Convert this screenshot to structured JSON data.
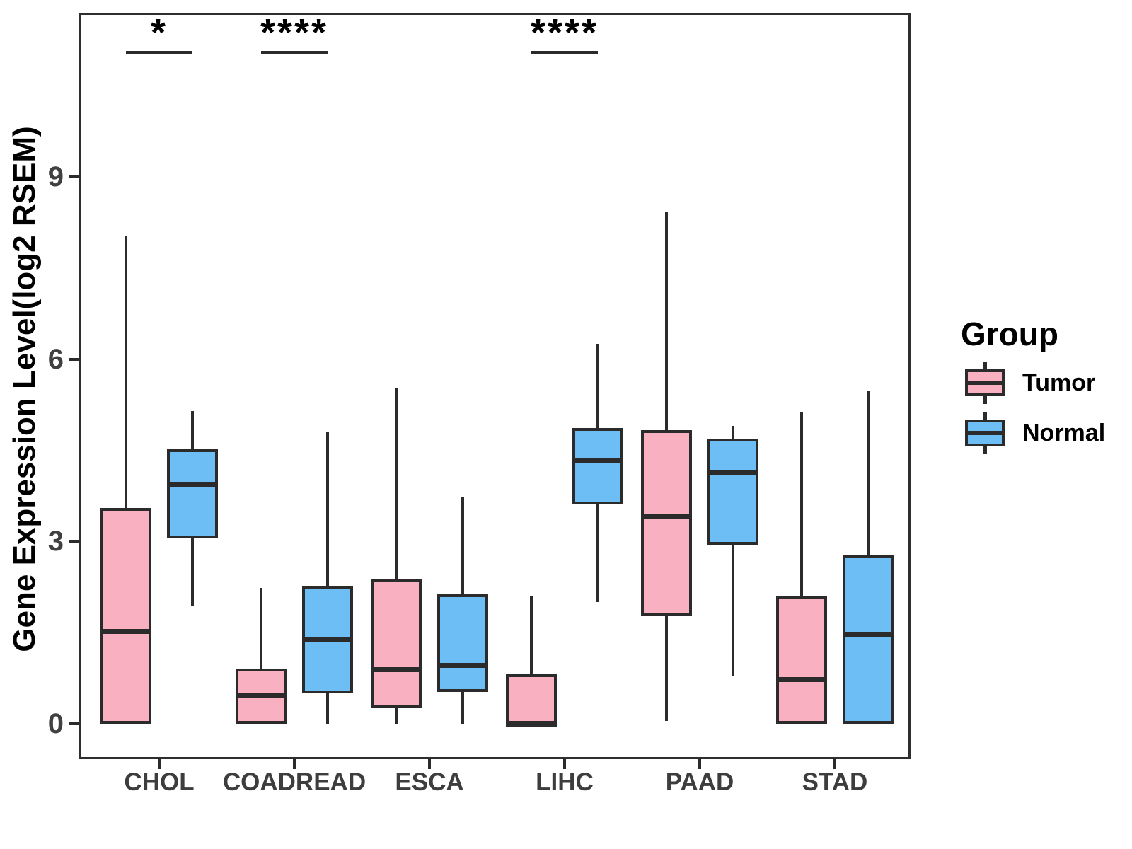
{
  "legend": {
    "title": "Group"
  },
  "chart_data": {
    "type": "boxplot",
    "title": "",
    "ylabel": "Gene Expression Level(log2 RSEM)",
    "xlabel": "",
    "yticks": [
      0,
      3,
      6,
      9
    ],
    "ylim": [
      -0.56,
      11.67
    ],
    "grid": false,
    "legend_position": "right",
    "categories": [
      "CHOL",
      "COADREAD",
      "ESCA",
      "LIHC",
      "PAAD",
      "STAD"
    ],
    "series": [
      {
        "name": "Tumor",
        "color": "#F9B1C1",
        "boxes": [
          {
            "low": 0,
            "q1": 0,
            "median": 1.53,
            "q3": 3.55,
            "high": 8.03
          },
          {
            "low": 0,
            "q1": 0,
            "median": 0.47,
            "q3": 0.91,
            "high": 2.23
          },
          {
            "low": 0,
            "q1": 0.26,
            "median": 0.9,
            "q3": 2.39,
            "high": 5.52
          },
          {
            "low": 0,
            "q1": 0,
            "median": 0,
            "q3": 0.81,
            "high": 2.1
          },
          {
            "low": 0.05,
            "q1": 1.78,
            "median": 3.41,
            "q3": 4.83,
            "high": 8.43
          },
          {
            "low": 0,
            "q1": 0,
            "median": 0.73,
            "q3": 2.1,
            "high": 5.12
          }
        ]
      },
      {
        "name": "Normal",
        "color": "#6DBEF5",
        "boxes": [
          {
            "low": 1.93,
            "q1": 3.05,
            "median": 3.95,
            "q3": 4.52,
            "high": 5.15
          },
          {
            "low": 0,
            "q1": 0.5,
            "median": 1.4,
            "q3": 2.27,
            "high": 4.8
          },
          {
            "low": 0,
            "q1": 0.52,
            "median": 0.97,
            "q3": 2.13,
            "high": 3.73
          },
          {
            "low": 2.0,
            "q1": 3.61,
            "median": 4.34,
            "q3": 4.87,
            "high": 6.25
          },
          {
            "low": 0.79,
            "q1": 2.94,
            "median": 4.13,
            "q3": 4.69,
            "high": 4.9
          },
          {
            "low": 0,
            "q1": 0,
            "median": 1.48,
            "q3": 2.78,
            "high": 5.48
          }
        ]
      }
    ],
    "significance": [
      {
        "category": "CHOL",
        "label": "*"
      },
      {
        "category": "COADREAD",
        "label": "****"
      },
      {
        "category": "LIHC",
        "label": "****"
      }
    ]
  }
}
